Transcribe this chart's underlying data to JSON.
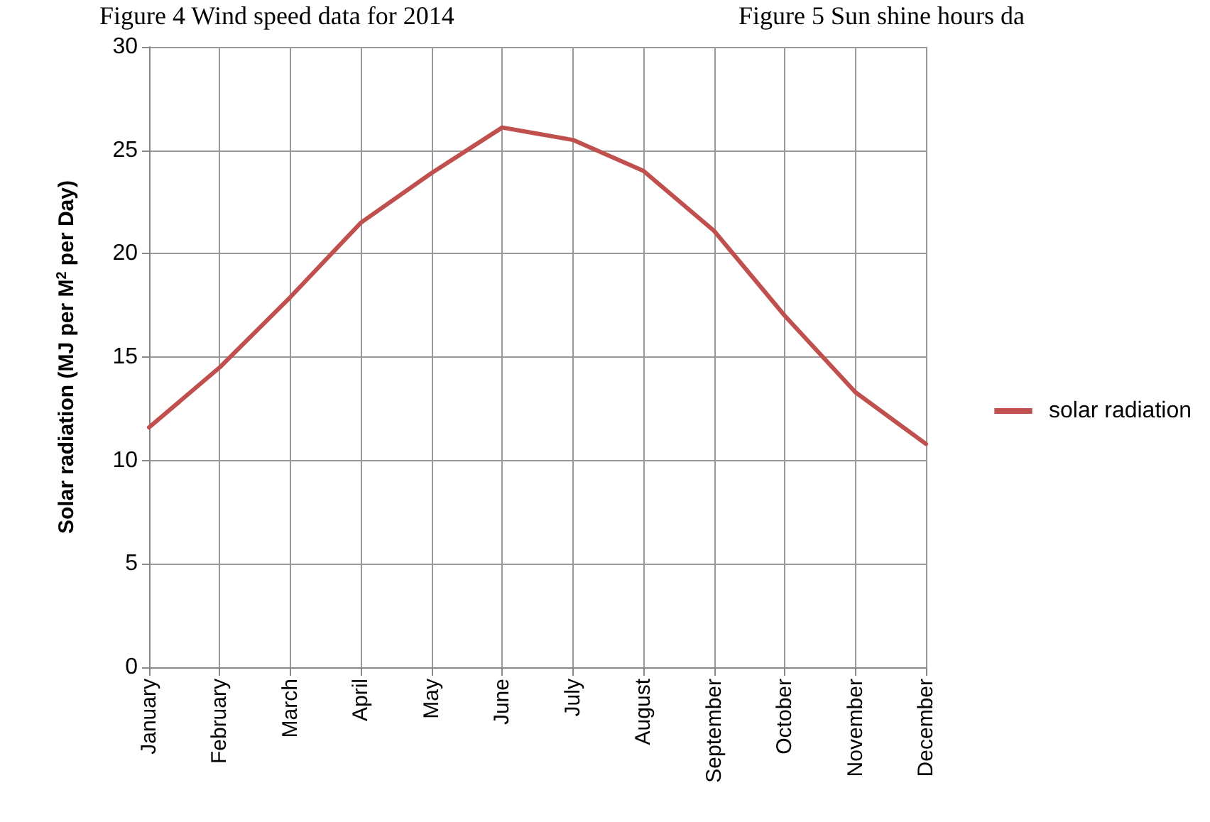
{
  "chart_data": {
    "type": "line",
    "ylabel": "Solar radiation (MJ per M$^{2}$ per Day)",
    "annotations": [
      "Figure 4 Wind speed data for 2014",
      "Figure 5 Sun shine hours da"
    ],
    "categories": [
      "January",
      "February",
      "March",
      "April",
      "May",
      "June",
      "July",
      "August",
      "September",
      "October",
      "November",
      "December"
    ],
    "series": [
      {
        "name": "solar radiation",
        "color": "#c0504d",
        "values": [
          11.6,
          14.5,
          17.9,
          21.5,
          23.9,
          26.1,
          25.5,
          24.0,
          21.1,
          17.0,
          13.3,
          10.8
        ]
      }
    ],
    "ylim": [
      0,
      30
    ],
    "yticks": [
      0,
      5,
      10,
      15,
      20,
      25,
      30
    ],
    "grid": true,
    "legend": "right",
    "marker": "none",
    "line_style": "solid"
  }
}
